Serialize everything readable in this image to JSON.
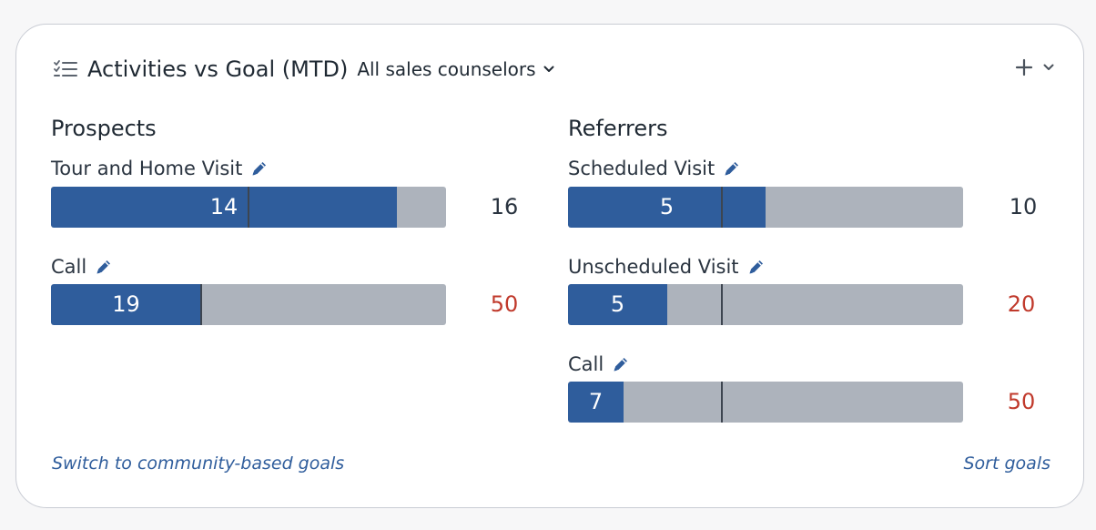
{
  "header": {
    "title": "Activities vs Goal (MTD)",
    "filter_label": "All sales counselors"
  },
  "prospects": {
    "title": "Prospects",
    "goals": [
      {
        "label": "Tour and Home Visit",
        "actual": "14",
        "goal": "16",
        "actual_num": 14,
        "goal_num": 16,
        "marker_num": 8,
        "status": "ok"
      },
      {
        "label": "Call",
        "actual": "19",
        "goal": "50",
        "actual_num": 19,
        "goal_num": 50,
        "marker_num": 19,
        "status": "bad"
      }
    ]
  },
  "referrers": {
    "title": "Referrers",
    "goals": [
      {
        "label": "Scheduled Visit",
        "actual": "5",
        "goal": "10",
        "actual_num": 5,
        "goal_num": 10,
        "marker_num": 3.9,
        "status": "ok"
      },
      {
        "label": "Unscheduled Visit",
        "actual": "5",
        "goal": "20",
        "actual_num": 5,
        "goal_num": 20,
        "marker_num": 7.8,
        "status": "bad"
      },
      {
        "label": "Call",
        "actual": "7",
        "goal": "50",
        "actual_num": 7,
        "goal_num": 50,
        "marker_num": 19.5,
        "status": "bad"
      }
    ]
  },
  "footer": {
    "switch_label": "Switch to community-based goals",
    "sort_label": "Sort goals"
  },
  "icons": {
    "header": "checklist-icon",
    "filter": "chevron-down-icon",
    "add": "plus-icon",
    "collapse": "chevron-down-icon",
    "edit": "pencil-icon"
  },
  "colors": {
    "accent": "#2f5d9c",
    "track": "#adb3bc",
    "marker": "#3d4550",
    "goal_ok": "#2a3440",
    "goal_behind": "#c0392b"
  }
}
